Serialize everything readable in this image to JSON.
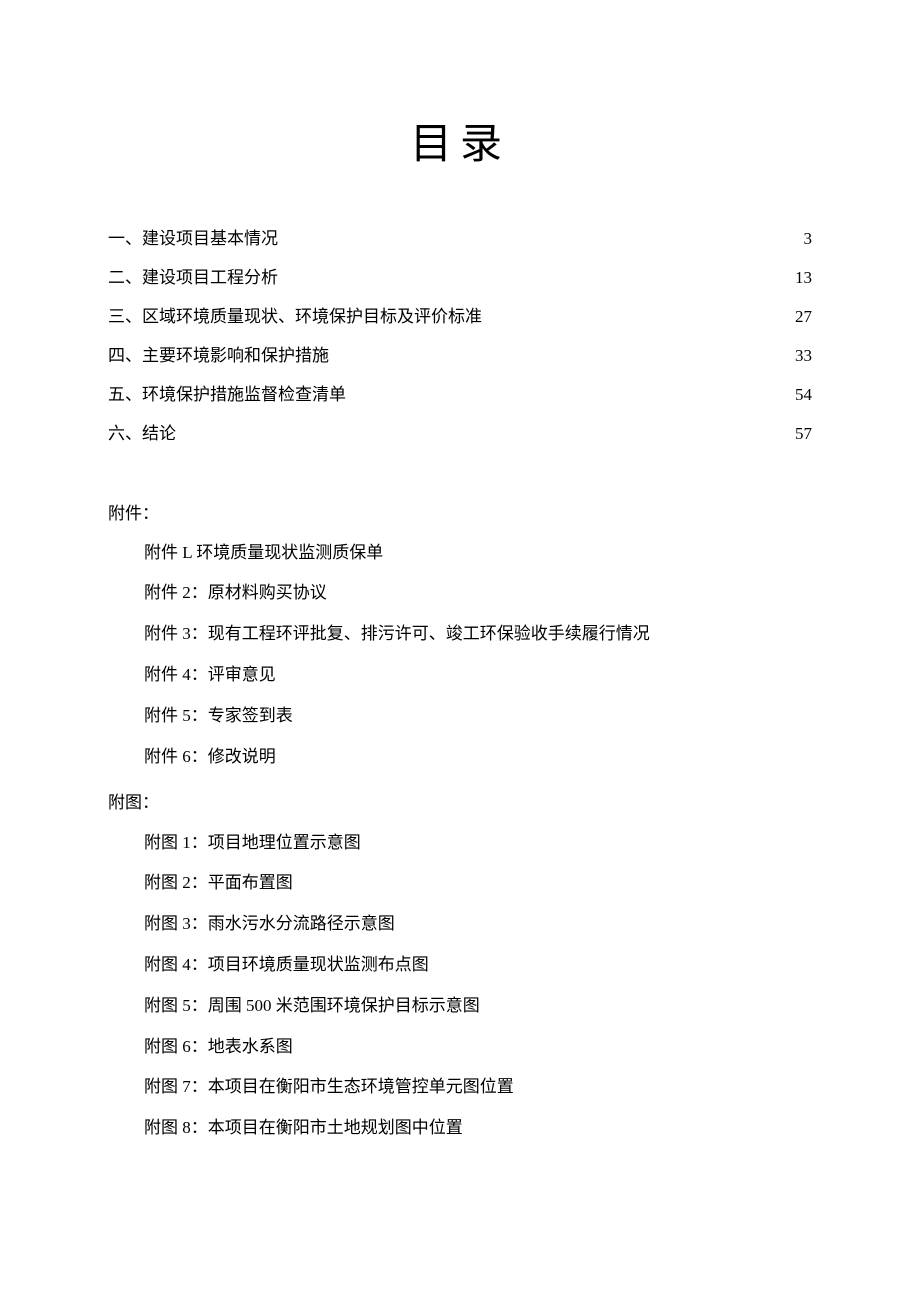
{
  "title": "目录",
  "toc": [
    {
      "label": "一、建设项目基本情况",
      "page": "3"
    },
    {
      "label": "二、建设项目工程分析",
      "page": "13"
    },
    {
      "label": "三、区域环境质量现状、环境保护目标及评价标准",
      "page": "27"
    },
    {
      "label": "四、主要环境影响和保护措施",
      "page": "33"
    },
    {
      "label": "五、环境保护措施监督检查清单",
      "page": "54"
    },
    {
      "label": "六、结论",
      "page": "57"
    }
  ],
  "attachments_heading": "附件：",
  "attachments": [
    "附件 L 环境质量现状监测质保单",
    "附件 2：原材料购买协议",
    "附件 3：现有工程环评批复、排污许可、竣工环保验收手续履行情况",
    "附件 4：评审意见",
    "附件 5：专家签到表",
    "附件 6：修改说明"
  ],
  "figures_heading": "附图：",
  "figures": [
    "附图 1：项目地理位置示意图",
    "附图 2：平面布置图",
    "附图 3：雨水污水分流路径示意图",
    "附图 4：项目环境质量现状监测布点图",
    "附图 5：周围 500 米范围环境保护目标示意图",
    "附图 6：地表水系图",
    "附图 7：本项目在衡阳市生态环境管控单元图位置",
    "附图 8：本项目在衡阳市土地规划图中位置"
  ],
  "colors": {
    "background": "#ffffff",
    "text": "#000000"
  },
  "fonts": {
    "title_size": 42,
    "body_size": 17,
    "family": "SimSun"
  }
}
